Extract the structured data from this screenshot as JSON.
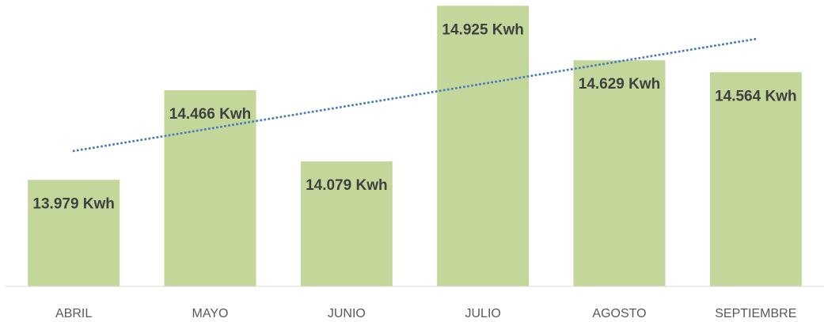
{
  "chart_data": {
    "type": "bar",
    "categories": [
      "ABRIL",
      "MAYO",
      "JUNIO",
      "JULIO",
      "AGOSTO",
      "SEPTIEMBRE"
    ],
    "values": [
      13979,
      14466,
      14079,
      14925,
      14629,
      14564
    ],
    "value_labels": [
      "13.979  Kwh",
      "14.466 Kwh",
      "14.079  Kwh",
      "14.925 Kwh",
      "14.629 Kwh",
      "14.564 Kwh"
    ],
    "color": "#c4d79b",
    "ylim": [
      13400,
      14950
    ],
    "trendline": {
      "type": "linear",
      "color": "#4a7ebb"
    }
  }
}
